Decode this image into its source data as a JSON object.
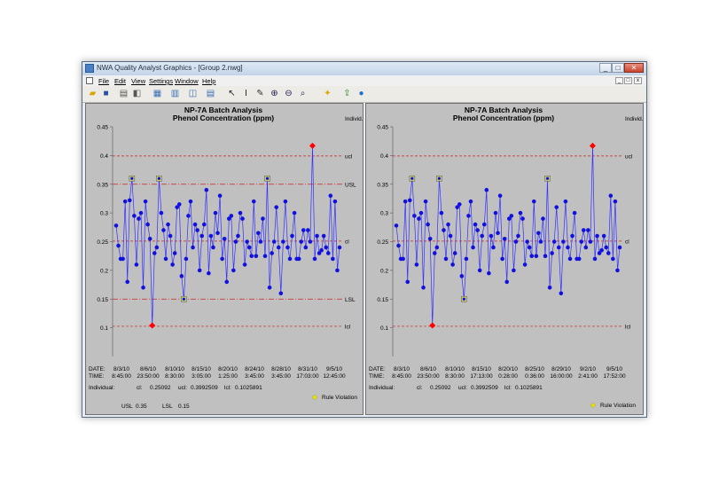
{
  "window": {
    "title": "NWA Quality Analyst Graphics - [Group 2.nwg]",
    "minimize": "_",
    "maximize": "□",
    "close": "✕"
  },
  "menu": [
    "File",
    "Edit",
    "View",
    "Settings",
    "Window",
    "Help"
  ],
  "mdi_controls": [
    "_",
    "□",
    "x"
  ],
  "toolbar_icons": [
    "open-folder-icon",
    "save-icon",
    "print-icon",
    "print-preview-icon",
    "grid-layout-icon",
    "tile-icon",
    "tile-vertical-icon",
    "tile-horizontal-icon",
    "pointer-icon",
    "text-cursor-icon",
    "annotate-icon",
    "zoom-in-icon",
    "zoom-out-icon",
    "zoom-select-icon",
    "highlight-icon",
    "export-icon",
    "help-icon"
  ],
  "colors": {
    "line": "#3030ff",
    "point": "#1010e0",
    "violation": "#ff0000",
    "rule": "#cccc66",
    "limit": "#cc2222",
    "plot_bg": "#c0c0c0"
  },
  "charts": [
    {
      "title": "NP-7A Batch Analysis",
      "subtitle": "Phenol Concentration (ppm)",
      "right_header": "Individ.",
      "yticks": [
        "0.45",
        "0.4",
        "0.35",
        "0.3",
        "0.25",
        "0.2",
        "0.15",
        "0.1"
      ],
      "limit_labels": {
        "ucl": "ucl",
        "usl": "USL",
        "cl": "cl",
        "lsl": "LSL",
        "lcl": "lcl"
      },
      "date_label": "DATE:",
      "time_label": "TIME:",
      "dates": [
        "8/3/10",
        "8/6/10",
        "8/10/10",
        "8/15/10",
        "8/20/10",
        "8/24/10",
        "8/28/10",
        "8/31/10",
        "9/5/10"
      ],
      "times": [
        "8:45:00",
        "23:50:00",
        "8:30:00",
        "3:05:00",
        "1:25:00",
        "3:45:00",
        "3:45:00",
        "17:03:00",
        "12:45:00"
      ],
      "stats": {
        "label": "Individual:",
        "cl_label": "cl:",
        "cl": "0.25092",
        "ucl_label": "ucl:",
        "ucl": "0.3992509",
        "lcl_label": "lcl:",
        "lcl": "0.1025891"
      },
      "spec": {
        "usl_label": "USL",
        "usl": "0.35",
        "lsl_label": "LSL",
        "lsl": "0.15"
      },
      "legend": "Rule Violation"
    },
    {
      "title": "NP-7A Batch Analysis",
      "subtitle": "Phenol Concentration (ppm)",
      "right_header": "Individ.",
      "yticks": [
        "0.45",
        "0.4",
        "0.35",
        "0.3",
        "0.25",
        "0.2",
        "0.15",
        "0.1"
      ],
      "limit_labels": {
        "ucl": "ucl",
        "cl": "cl",
        "lcl": "lcl"
      },
      "date_label": "DATE:",
      "time_label": "TIME:",
      "dates": [
        "8/3/10",
        "8/6/10",
        "8/10/10",
        "8/15/10",
        "8/20/10",
        "8/25/10",
        "8/29/10",
        "9/2/10",
        "9/5/10"
      ],
      "times": [
        "8:45:00",
        "23:50:00",
        "8:30:00",
        "17:13:00",
        "0:28:00",
        "0:36:00",
        "16:00:00",
        "2:41:00",
        "17:52:00"
      ],
      "stats": {
        "label": "Individual:",
        "cl_label": "cl:",
        "cl": "0.25092",
        "ucl_label": "ucl:",
        "ucl": "0.3992509",
        "lcl_label": "lcl:",
        "lcl": "0.1025891"
      },
      "legend": "Rule Violation"
    }
  ],
  "chart_data": [
    {
      "type": "line",
      "title": "NP-7A Batch Analysis",
      "subtitle": "Phenol Concentration (ppm)",
      "ylim": [
        0.05,
        0.45
      ],
      "limits": {
        "ucl": 0.3992509,
        "cl": 0.25092,
        "lcl": 0.1025891,
        "usl": 0.35,
        "lsl": 0.15
      },
      "series": [
        {
          "values": [
            0.278,
            0.243,
            0.22,
            0.22,
            0.32,
            0.18,
            0.322,
            0.36,
            0.295,
            0.21,
            0.29,
            0.3,
            0.17,
            0.32,
            0.28,
            0.255,
            0.104,
            0.23,
            0.24,
            0.36,
            0.3,
            0.27,
            0.22,
            0.28,
            0.26,
            0.21,
            0.23,
            0.31,
            0.315,
            0.19,
            0.15,
            0.22,
            0.295,
            0.32,
            0.24,
            0.28,
            0.27,
            0.2,
            0.26,
            0.28,
            0.34,
            0.195,
            0.26,
            0.24,
            0.3,
            0.265,
            0.33,
            0.22,
            0.255,
            0.18,
            0.29,
            0.295,
            0.2,
            0.25,
            0.26,
            0.3,
            0.29,
            0.21,
            0.25,
            0.24,
            0.225,
            0.32,
            0.225,
            0.265,
            0.25,
            0.29,
            0.225,
            0.36,
            0.17,
            0.23,
            0.25,
            0.31,
            0.24,
            0.16,
            0.25,
            0.32,
            0.24,
            0.22,
            0.26,
            0.3,
            0.22,
            0.22,
            0.25,
            0.27,
            0.24,
            0.27,
            0.25,
            0.417,
            0.22,
            0.26,
            0.23,
            0.235,
            0.26,
            0.24,
            0.23,
            0.33,
            0.22,
            0.32,
            0.2,
            0.24
          ],
          "violations": [
            {
              "index": 16,
              "kind": "limit"
            },
            {
              "index": 87,
              "kind": "limit"
            }
          ],
          "rule_violations": [
            7,
            19,
            30,
            67
          ]
        }
      ]
    },
    {
      "type": "line",
      "title": "NP-7A Batch Analysis",
      "subtitle": "Phenol Concentration (ppm)",
      "ylim": [
        0.05,
        0.45
      ],
      "limits": {
        "ucl": 0.3992509,
        "cl": 0.25092,
        "lcl": 0.1025891
      },
      "series": [
        {
          "values": [
            0.278,
            0.243,
            0.22,
            0.22,
            0.32,
            0.18,
            0.322,
            0.36,
            0.295,
            0.21,
            0.29,
            0.3,
            0.17,
            0.32,
            0.28,
            0.255,
            0.104,
            0.23,
            0.24,
            0.36,
            0.3,
            0.27,
            0.22,
            0.28,
            0.26,
            0.21,
            0.23,
            0.31,
            0.315,
            0.19,
            0.15,
            0.22,
            0.295,
            0.32,
            0.24,
            0.28,
            0.27,
            0.2,
            0.26,
            0.28,
            0.34,
            0.195,
            0.26,
            0.24,
            0.3,
            0.265,
            0.33,
            0.22,
            0.255,
            0.18,
            0.29,
            0.295,
            0.2,
            0.25,
            0.26,
            0.3,
            0.29,
            0.21,
            0.25,
            0.24,
            0.225,
            0.32,
            0.225,
            0.265,
            0.25,
            0.29,
            0.225,
            0.36,
            0.17,
            0.23,
            0.25,
            0.31,
            0.24,
            0.16,
            0.25,
            0.32,
            0.24,
            0.22,
            0.26,
            0.3,
            0.22,
            0.22,
            0.25,
            0.27,
            0.24,
            0.27,
            0.25,
            0.417,
            0.22,
            0.26,
            0.23,
            0.235,
            0.26,
            0.24,
            0.23,
            0.33,
            0.22,
            0.32,
            0.2,
            0.24
          ],
          "violations": [
            {
              "index": 16,
              "kind": "limit"
            },
            {
              "index": 87,
              "kind": "limit"
            }
          ],
          "rule_violations": [
            7,
            19,
            30,
            67
          ]
        }
      ]
    }
  ]
}
